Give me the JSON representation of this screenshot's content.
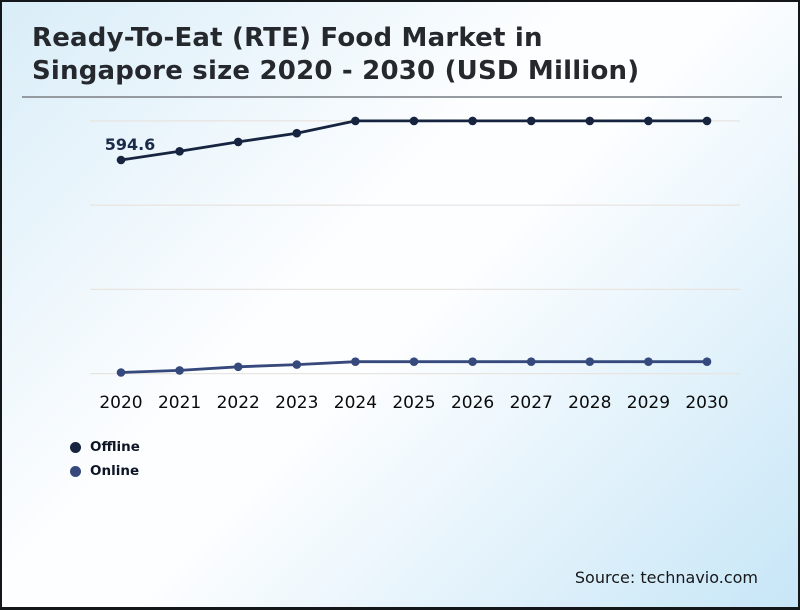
{
  "header": {
    "title_line1": "Ready-To-Eat (RTE) Food Market in",
    "title_line2": "Singapore size 2020 - 2030 (USD Million)"
  },
  "footer": {
    "source": "Source: technavio.com"
  },
  "colors": {
    "offline": "#16243f",
    "online": "#35497c",
    "gridline": "#e8e4e0",
    "data_label": "#1b2a4a",
    "tick_label": "#0b0b0b"
  },
  "chart_data": {
    "type": "line",
    "title": "Ready-To-Eat (RTE) Food Market in Singapore size 2020 - 2030 (USD Million)",
    "x": [
      "2020",
      "2021",
      "2022",
      "2023",
      "2024",
      "2025",
      "2026",
      "2027",
      "2028",
      "2029",
      "2030"
    ],
    "series": [
      {
        "name": "Offline",
        "color": "#16243f",
        "values": [
          594.6,
          595.8,
          597.1,
          598.3,
          600.0,
          600.0,
          600.0,
          600.0,
          600.0,
          600.0,
          600.0
        ],
        "point_label": {
          "index": 0,
          "text": "594.6"
        }
      },
      {
        "name": "Online",
        "color": "#35497c",
        "values": [
          565.2,
          565.5,
          566.0,
          566.3,
          566.7,
          566.7,
          566.7,
          566.7,
          566.7,
          566.7,
          566.7
        ]
      }
    ],
    "ylim": [
      563.2,
      602.2
    ],
    "grid": true,
    "gridline_values": [
      600.0,
      588.35,
      576.7,
      565.05
    ],
    "legend_position": "bottom-left",
    "y_axis_labels_visible": false
  }
}
